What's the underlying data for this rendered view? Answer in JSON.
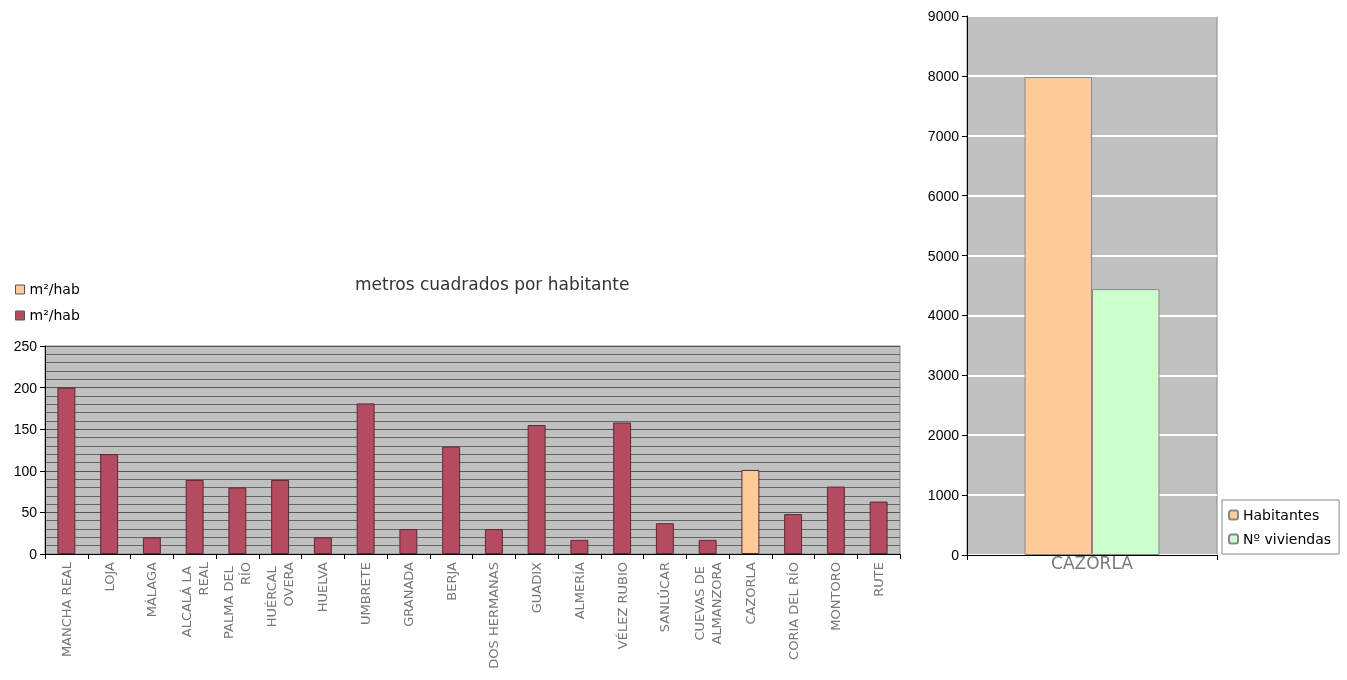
{
  "chart_data": [
    {
      "type": "bar",
      "title": "metros cuadrados por habitante",
      "stacked": true,
      "legend": "top left",
      "grid": "y",
      "categories": [
        "MANCHA REAL",
        "LOJA",
        "MÁLAGA",
        "ALCALÁ LA REAL",
        "PALMA DEL RÍO",
        "HUÉRCAL OVERA",
        "HUELVA",
        "UMBRETE",
        "GRANADA",
        "BERJA",
        "DOS HERMANAS",
        "GUADIX",
        "ALMERÍA",
        "VÉLEZ RUBIO",
        "SANLÚCAR",
        "CUEVAS DE ALMANZORA",
        "CAZORLA",
        "CORIA DEL RÍO",
        "MONTORO",
        "RUTE"
      ],
      "series": [
        {
          "name": "m²/hab",
          "color": "#ffcc99",
          "values": [
            null,
            null,
            null,
            null,
            null,
            null,
            null,
            null,
            null,
            null,
            null,
            null,
            null,
            null,
            null,
            null,
            101,
            null,
            null,
            null
          ]
        },
        {
          "name": "m²/hab",
          "color": "#b44b61",
          "values": [
            200,
            120,
            20,
            89,
            80,
            89,
            20,
            181,
            30,
            129,
            30,
            155,
            17,
            158,
            37,
            17,
            null,
            48,
            81,
            63
          ]
        }
      ],
      "ylim": [
        0,
        250
      ],
      "yticks": [
        0,
        50,
        100,
        150,
        200,
        250
      ]
    },
    {
      "type": "bar",
      "legend": "bottom right",
      "grid": "y",
      "categories": [
        "CAZORLA"
      ],
      "series": [
        {
          "name": "Habitantes",
          "color": "#ffcc99",
          "values": [
            7980
          ]
        },
        {
          "name": "Nº viviendas",
          "color": "#ccffcc",
          "values": [
            4440
          ]
        }
      ],
      "ylim": [
        0,
        9000
      ],
      "yticks": [
        0,
        1000,
        2000,
        3000,
        4000,
        5000,
        6000,
        7000,
        8000,
        9000
      ]
    }
  ]
}
